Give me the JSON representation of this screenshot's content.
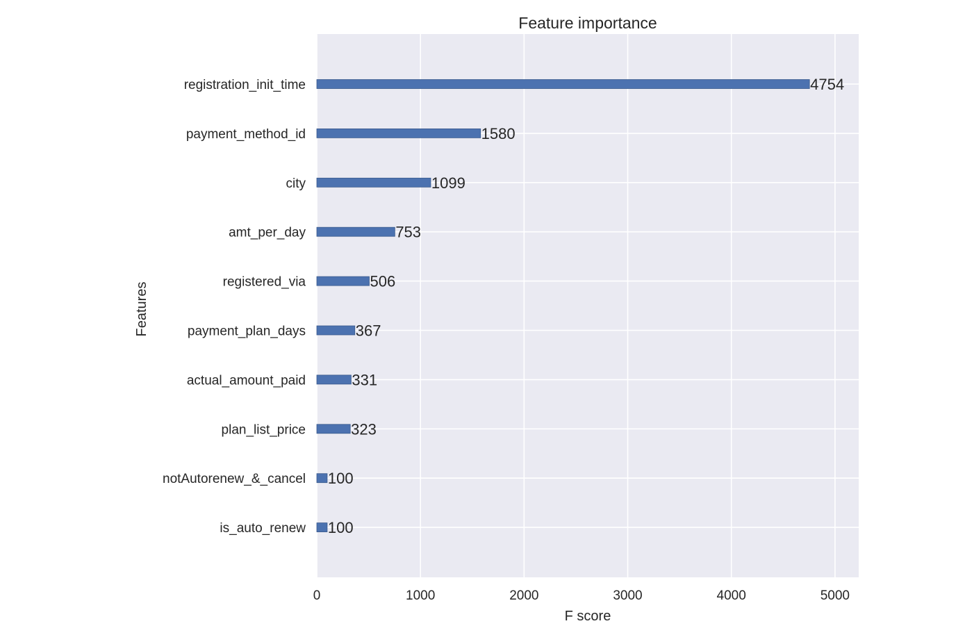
{
  "chart_data": {
    "type": "bar",
    "orientation": "horizontal",
    "title": "Feature importance",
    "xlabel": "F score",
    "ylabel": "Features",
    "categories": [
      "registration_init_time",
      "payment_method_id",
      "city",
      "amt_per_day",
      "registered_via",
      "payment_plan_days",
      "actual_amount_paid",
      "plan_list_price",
      "notAutorenew_&_cancel",
      "is_auto_renew"
    ],
    "values": [
      4754,
      1580,
      1099,
      753,
      506,
      367,
      331,
      323,
      100,
      100
    ],
    "xlim": [
      0,
      5229
    ],
    "xticks": [
      0,
      1000,
      2000,
      3000,
      4000,
      5000
    ],
    "grid": true,
    "colors": {
      "bar": "#4c72b0",
      "plot_bg": "#eaeaf2",
      "grid": "#ffffff"
    }
  }
}
